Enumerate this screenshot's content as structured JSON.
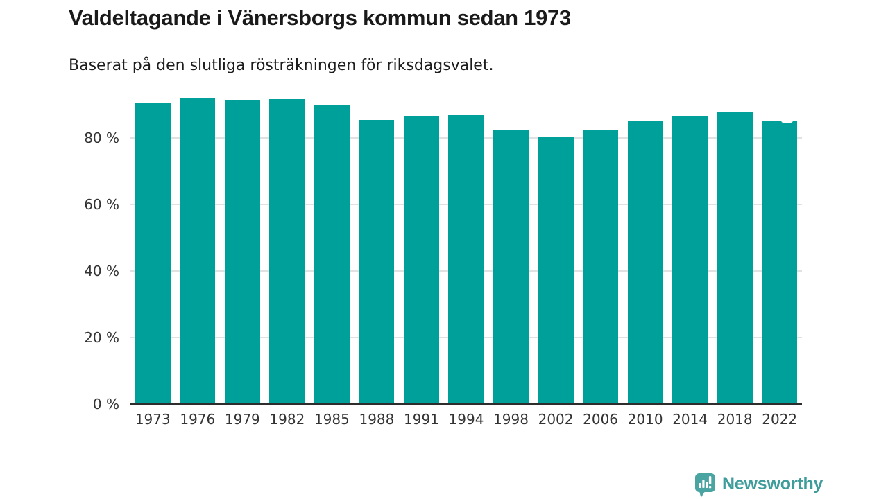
{
  "header": {
    "title": "Valdeltagande i Vänersborgs kommun sedan 1973",
    "subtitle": "Baserat på den slutliga rösträkningen för riksdagsvalet."
  },
  "chart_data": {
    "type": "bar",
    "title": "Valdeltagande i Vänersborgs kommun sedan 1973",
    "subtitle": "Baserat på den slutliga rösträkningen för riksdagsvalet.",
    "categories": [
      "1973",
      "1976",
      "1979",
      "1982",
      "1985",
      "1988",
      "1991",
      "1994",
      "1998",
      "2002",
      "2006",
      "2010",
      "2014",
      "2018",
      "2022"
    ],
    "values": [
      90.6,
      91.9,
      91.2,
      91.7,
      89.9,
      85.5,
      86.7,
      86.9,
      82.3,
      80.5,
      82.2,
      85.3,
      86.4,
      87.8,
      85.2
    ],
    "unit": "%",
    "xlabel": "",
    "ylabel": "",
    "ylim": [
      0,
      100
    ],
    "yticks": [
      0,
      20,
      40,
      60,
      80
    ],
    "ytick_labels": [
      "0 %",
      "20 %",
      "40 %",
      "60 %",
      "80 %"
    ],
    "grid": "horizontal-light",
    "legend": "none",
    "bar_color": "#00a09a",
    "gridline_color": "#e1e1e1",
    "axis_color": "#2d2d2d",
    "last_bar_detail": {
      "category": "2022",
      "notch_value": 84.6
    }
  },
  "footer": {
    "brand": "Newsworthy",
    "brand_text_color": "#3e9c9b",
    "badge_color": "#4aa5a2"
  }
}
